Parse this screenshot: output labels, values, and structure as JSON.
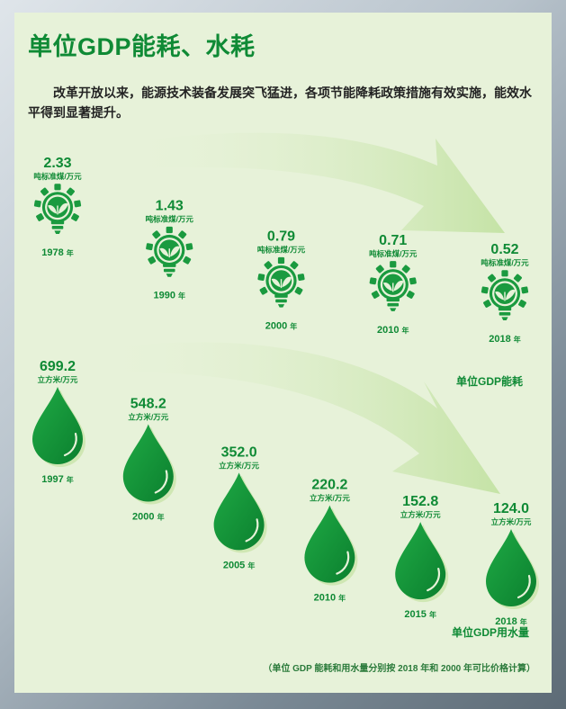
{
  "title": "单位GDP能耗、水耗",
  "intro": "改革开放以来，能源技术装备发展突飞猛进，各项节能降耗政策措施有效实施，能效水平得到显著提升。",
  "footnote": "（单位 GDP 能耗和用水量分别按 2018 年和 2000 年可比价格计算）",
  "year_suffix": "年",
  "colors": {
    "primary": "#0f8a35",
    "drop_light": "#5cc36a",
    "arrow": "#cfe7b3",
    "card": "#e7f2d9"
  },
  "chart_data": [
    {
      "type": "line",
      "series": [
        {
          "name": "单位GDP能耗",
          "unit": "吨标准煤/万元",
          "icon": "eco-lightbulb-icon"
        }
      ],
      "x": [
        "1978",
        "1990",
        "2000",
        "2010",
        "2018"
      ],
      "values": [
        2.33,
        1.43,
        0.79,
        0.71,
        0.52
      ]
    },
    {
      "type": "line",
      "series": [
        {
          "name": "单位GDP用水量",
          "unit": "立方米/万元",
          "icon": "water-drop-icon"
        }
      ],
      "x": [
        "1997",
        "2000",
        "2005",
        "2010",
        "2015",
        "2018"
      ],
      "values": [
        699.2,
        548.2,
        352.0,
        220.2,
        152.8,
        124.0
      ]
    }
  ]
}
